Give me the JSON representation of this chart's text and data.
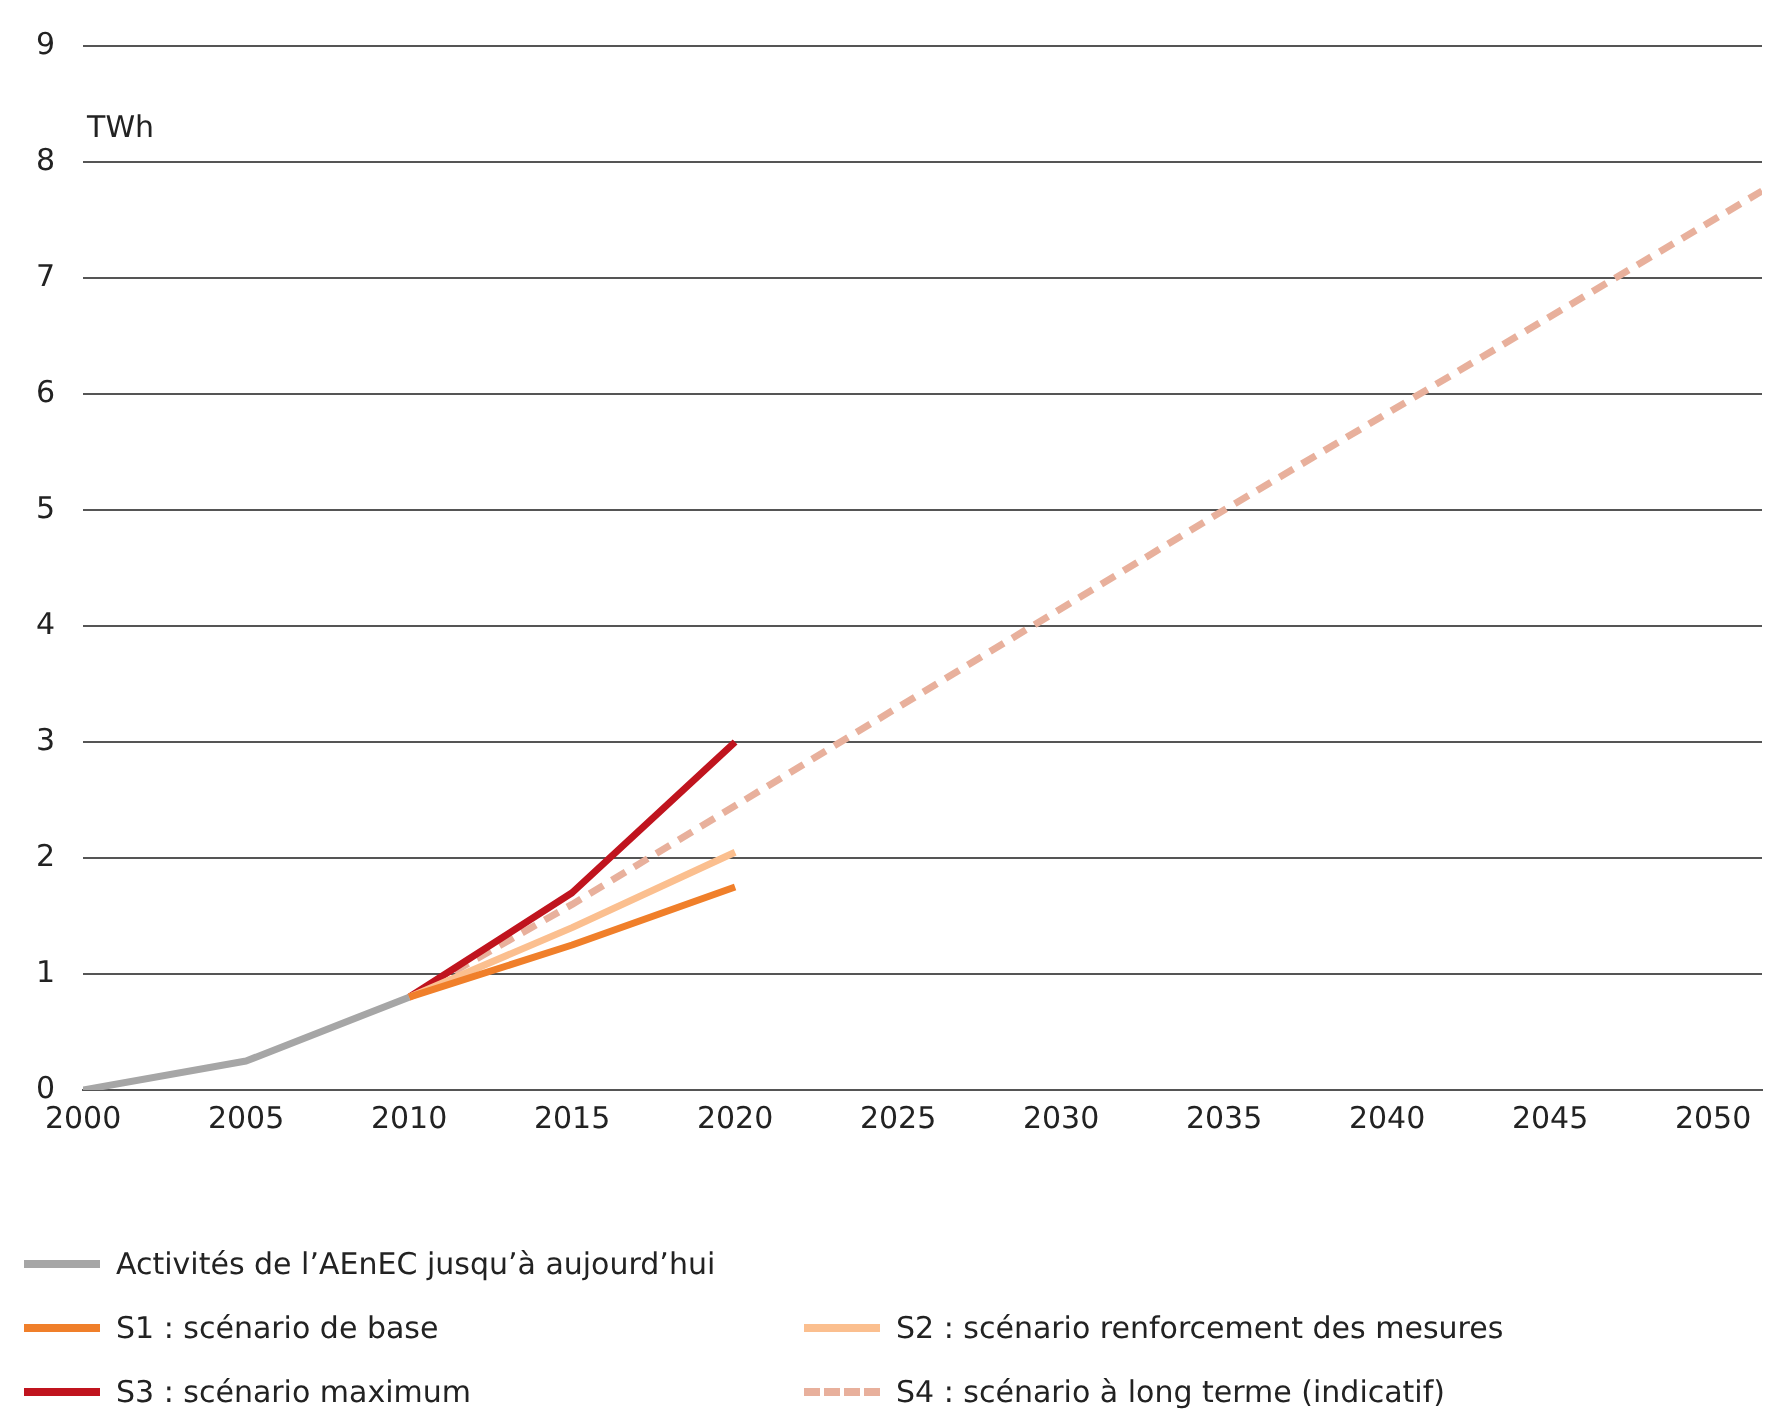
{
  "chart_data": {
    "type": "line",
    "ylabel": "TWh",
    "series": [
      {
        "name": "Activités de l’AEnEC jusqu’à aujourd’hui",
        "color": "#a6a6a6",
        "x": [
          2000,
          2005,
          2010
        ],
        "values": [
          0,
          0.25,
          0.8
        ]
      },
      {
        "name": "S1 : scénario de base",
        "color": "#f07f2a",
        "x": [
          2010,
          2015,
          2020
        ],
        "values": [
          0.8,
          1.25,
          1.75
        ]
      },
      {
        "name": "S2 : scénario renforcement des mesures",
        "color": "#fbbf8f",
        "x": [
          2010,
          2015,
          2020
        ],
        "values": [
          0.8,
          1.4,
          2.05
        ]
      },
      {
        "name": "S3 : scénario maximum",
        "color": "#c0141e",
        "x": [
          2010,
          2015,
          2020
        ],
        "values": [
          0.8,
          1.7,
          3.0
        ]
      },
      {
        "name": "S4 : scénario à long terme (indicatif)",
        "color": "#e8b09c",
        "line_style": "dashed",
        "x": [
          2010,
          2015,
          2035,
          2051.5
        ],
        "values": [
          0.8,
          1.6,
          5.0,
          7.75
        ]
      }
    ],
    "xlim": [
      2000,
      2051.5
    ],
    "xticks": [
      2000,
      2005,
      2010,
      2015,
      2020,
      2025,
      2030,
      2035,
      2040,
      2045,
      2050
    ],
    "ylim": [
      0,
      9
    ],
    "yticks": [
      0,
      1,
      2,
      3,
      4,
      5,
      6,
      7,
      8,
      9
    ],
    "grid": "y",
    "legend": "bottom",
    "marker": "none",
    "line_style": "solid"
  }
}
